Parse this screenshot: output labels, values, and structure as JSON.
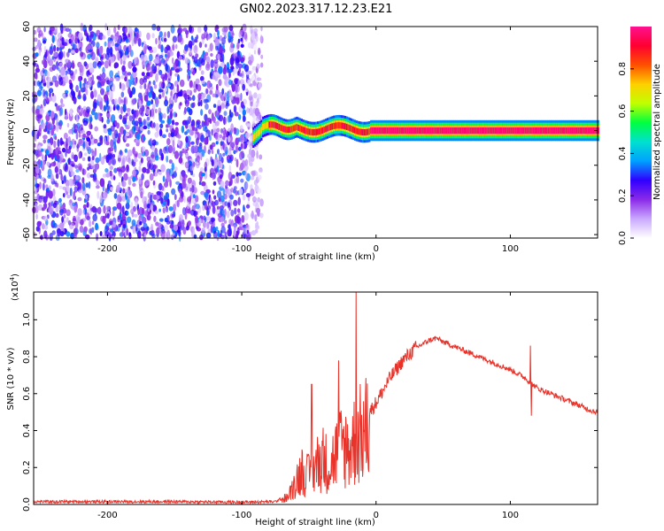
{
  "title": "GN02.2023.317.12.23.E21",
  "colors": {
    "snr_line": "#e8332a",
    "frame": "#000000",
    "background": "#ffffff"
  },
  "chart_data": [
    {
      "type": "heatmap",
      "name": "spectrogram",
      "xlabel": "Height of straight line (km)",
      "ylabel": "Frequency (Hz)",
      "xlim": [
        -255,
        165
      ],
      "ylim": [
        -62,
        60
      ],
      "xticks": [
        -200,
        -100,
        0,
        100
      ],
      "yticks": [
        -60,
        -40,
        -20,
        0,
        20,
        40,
        60
      ],
      "colorbar": {
        "label": "Normalized spectral amplitude",
        "range": [
          0,
          1
        ],
        "ticks": [
          0.0,
          0.2,
          0.4,
          0.6,
          0.8
        ],
        "colormap": [
          "#ffffff",
          "#c9a8ff",
          "#8b2be8",
          "#3000ff",
          "#00a0ff",
          "#00e0d0",
          "#00ff40",
          "#c0ff00",
          "#ffd000",
          "#ff5000",
          "#ff0030",
          "#ff1090"
        ]
      },
      "regions": {
        "noise_x_range": [
          -255,
          -85
        ],
        "noise_amplitude_range": [
          0.05,
          0.35
        ],
        "signal_x_range": [
          -92,
          165
        ],
        "signal_frequency_hz": 0,
        "signal_peak_amplitude": 0.97
      }
    },
    {
      "type": "line",
      "name": "snr",
      "xlabel": "Height of straight line (km)",
      "ylabel": "SNR (10 * v/v)",
      "multiplier": "(x10",
      "multiplier_exp": "4",
      "multiplier_close": ")",
      "xlim": [
        -255,
        165
      ],
      "ylim": [
        0.0,
        1.15
      ],
      "xticks": [
        -200,
        -100,
        0,
        100
      ],
      "yticks": [
        0.0,
        0.2,
        0.4,
        0.6,
        0.8,
        1.0
      ],
      "series": [
        {
          "x": [
            -255,
            -200,
            -150,
            -100,
            -75,
            -65,
            -60,
            -55,
            -50,
            -45,
            -40,
            -35,
            -30,
            -25,
            -20,
            -15,
            -10,
            -5,
            0,
            10,
            20,
            30,
            40,
            45,
            50,
            60,
            70,
            80,
            90,
            100,
            110,
            115,
            120,
            130,
            140,
            150,
            160,
            165
          ],
          "y": [
            0.015,
            0.015,
            0.015,
            0.012,
            0.015,
            0.05,
            0.15,
            0.22,
            0.18,
            0.25,
            0.3,
            0.24,
            0.32,
            0.38,
            0.35,
            0.42,
            0.45,
            0.5,
            0.55,
            0.68,
            0.78,
            0.85,
            0.89,
            0.9,
            0.88,
            0.85,
            0.82,
            0.79,
            0.76,
            0.73,
            0.69,
            0.66,
            0.63,
            0.6,
            0.57,
            0.54,
            0.51,
            0.5
          ]
        }
      ],
      "spikes": [
        {
          "x": -48,
          "y": 0.65
        },
        {
          "x": -28,
          "y": 0.78
        },
        {
          "x": -15,
          "y": 1.15
        },
        {
          "x": -8,
          "y": 0.6
        },
        {
          "x": 115,
          "y": 0.86
        },
        {
          "x": 115.5,
          "y": 0.48
        }
      ]
    }
  ]
}
